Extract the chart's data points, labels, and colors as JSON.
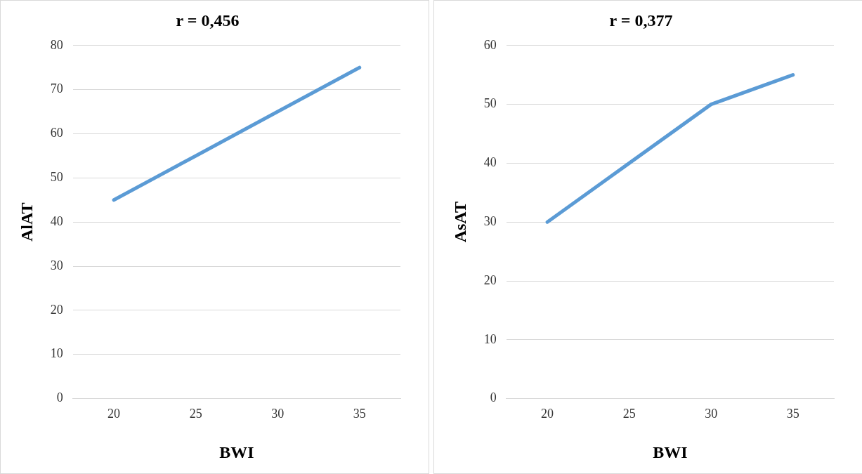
{
  "chart_data": [
    {
      "type": "line",
      "title": "r = 0,456",
      "xlabel": "BWI",
      "ylabel": "AlAT",
      "categories": [
        "20",
        "25",
        "30",
        "35"
      ],
      "series": [
        {
          "color": "#5b9bd5",
          "values": [
            45,
            55,
            65,
            75
          ]
        }
      ],
      "ylim": [
        0,
        80
      ],
      "yticks": [
        0,
        10,
        20,
        30,
        40,
        50,
        60,
        70,
        80
      ],
      "grid": "y",
      "legend": false,
      "marker": "none",
      "line_style": "solid"
    },
    {
      "type": "line",
      "title": "r = 0,377",
      "xlabel": "BWI",
      "ylabel": "AsAT",
      "categories": [
        "20",
        "25",
        "30",
        "35"
      ],
      "series": [
        {
          "color": "#5b9bd5",
          "values": [
            30,
            40,
            50,
            55
          ]
        }
      ],
      "ylim": [
        0,
        60
      ],
      "yticks": [
        0,
        10,
        20,
        30,
        40,
        50,
        60
      ],
      "grid": "y",
      "legend": false,
      "marker": "none",
      "line_style": "solid"
    }
  ]
}
